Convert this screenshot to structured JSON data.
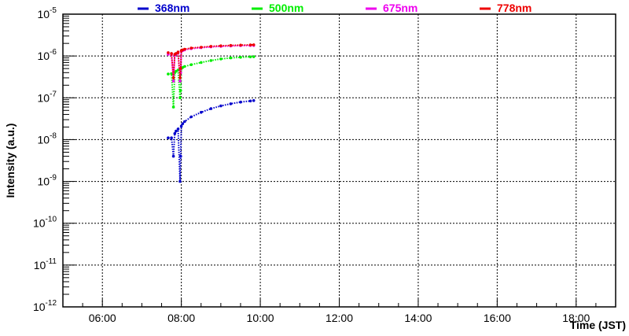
{
  "chart_data": {
    "type": "scatter",
    "title": "",
    "xlabel": "Time (JST)",
    "ylabel": "Intensity (a.u.)",
    "xscale": "linear",
    "yscale": "log",
    "xlim": [
      "05:00",
      "19:00"
    ],
    "ylim": [
      "1e-12",
      "1e-5"
    ],
    "grid": true,
    "legend_position": "top",
    "x_ticks": [
      "06:00",
      "08:00",
      "10:00",
      "12:00",
      "14:00",
      "16:00",
      "18:00"
    ],
    "y_ticks": [
      {
        "base": "10",
        "exp": "-12"
      },
      {
        "base": "10",
        "exp": "-11"
      },
      {
        "base": "10",
        "exp": "-10"
      },
      {
        "base": "10",
        "exp": "-9"
      },
      {
        "base": "10",
        "exp": "-8"
      },
      {
        "base": "10",
        "exp": "-7"
      },
      {
        "base": "10",
        "exp": "-6"
      },
      {
        "base": "10",
        "exp": "-5"
      }
    ],
    "series": [
      {
        "name": "368nm",
        "color": "#0000cc",
        "x": [
          "07:40",
          "07:45",
          "07:48",
          "07:50",
          "07:52",
          "07:55",
          "07:58",
          "07:59",
          "08:00",
          "08:02",
          "08:05",
          "08:15",
          "08:30",
          "08:45",
          "09:00",
          "09:15",
          "09:30",
          "09:45",
          "09:50"
        ],
        "y": [
          "1.1e-8",
          "1.1e-8",
          "4e-9",
          "1.4e-8",
          "1.6e-8",
          "1.8e-8",
          "1e-9",
          "4e-9",
          "2.1e-8",
          "2.4e-8",
          "2.7e-8",
          "3.5e-8",
          "4.5e-8",
          "5.5e-8",
          "6.4e-8",
          "7.2e-8",
          "7.9e-8",
          "8.4e-8",
          "8.6e-8"
        ]
      },
      {
        "name": "500nm",
        "color": "#00ee00",
        "x": [
          "07:40",
          "07:45",
          "07:48",
          "07:50",
          "07:52",
          "07:55",
          "07:58",
          "07:59",
          "08:00",
          "08:02",
          "08:05",
          "08:15",
          "08:30",
          "08:45",
          "09:00",
          "09:15",
          "09:30",
          "09:45",
          "09:50"
        ],
        "y": [
          "3.7e-7",
          "3.8e-7",
          "6e-8",
          "4e-7",
          "4.3e-7",
          "4.6e-7",
          "1e-7",
          "1.5e-7",
          "5e-7",
          "5.3e-7",
          "5.6e-7",
          "6.2e-7",
          "7e-7",
          "7.8e-7",
          "8.5e-7",
          "9e-7",
          "9.3e-7",
          "9.5e-7",
          "9.6e-7"
        ]
      },
      {
        "name": "675nm",
        "color": "#ee00ee",
        "x": [
          "07:40",
          "07:45",
          "07:48",
          "07:50",
          "07:52",
          "07:55",
          "07:58",
          "07:59",
          "08:00",
          "08:02",
          "08:05",
          "08:15",
          "08:30",
          "08:45",
          "09:00",
          "09:15",
          "09:30",
          "09:45",
          "09:50"
        ],
        "y": [
          "1.1e-6",
          "1.1e-6",
          "2.5e-7",
          "1.05e-6",
          "1.1e-6",
          "1.2e-6",
          "2.5e-7",
          "4e-7",
          "1.3e-6",
          "1.35e-6",
          "1.4e-6",
          "1.5e-6",
          "1.58e-6",
          "1.65e-6",
          "1.7e-6",
          "1.74e-6",
          "1.77e-6",
          "1.78e-6",
          "1.78e-6"
        ]
      },
      {
        "name": "778nm",
        "color": "#ee0000",
        "x": [
          "07:40",
          "07:45",
          "07:48",
          "07:50",
          "07:52",
          "07:55",
          "07:58",
          "07:59",
          "08:00",
          "08:02",
          "08:05",
          "08:15",
          "08:30",
          "08:45",
          "09:00",
          "09:15",
          "09:30",
          "09:45",
          "09:50"
        ],
        "y": [
          "1.2e-6",
          "1.15e-6",
          "3e-7",
          "1.1e-6",
          "1.15e-6",
          "1.25e-6",
          "3e-7",
          "5e-7",
          "1.35e-6",
          "1.4e-6",
          "1.45e-6",
          "1.55e-6",
          "1.62e-6",
          "1.7e-6",
          "1.75e-6",
          "1.79e-6",
          "1.82e-6",
          "1.84e-6",
          "1.85e-6"
        ]
      }
    ]
  }
}
